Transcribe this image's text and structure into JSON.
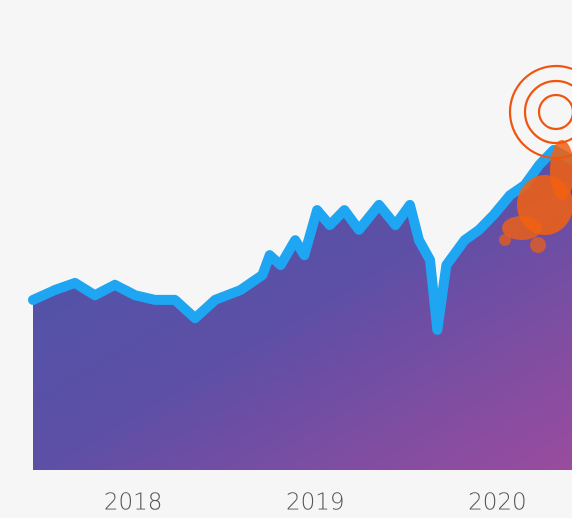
{
  "chart_data": {
    "type": "area-line",
    "x": [
      2017.45,
      2017.57,
      2017.68,
      2017.79,
      2017.9,
      2018.01,
      2018.12,
      2018.23,
      2018.34,
      2018.45,
      2018.59,
      2018.71,
      2018.75,
      2018.81,
      2018.89,
      2018.94,
      2019.01,
      2019.08,
      2019.16,
      2019.24,
      2019.35,
      2019.44,
      2019.52,
      2019.57,
      2019.63,
      2019.67,
      2019.72,
      2019.82,
      2019.9,
      2019.98,
      2020.07,
      2020.15,
      2020.23,
      2020.31,
      2020.41
    ],
    "series": [
      {
        "color": "#1ea6f2",
        "values": [
          36.2,
          38.3,
          39.8,
          37.2,
          39.4,
          37.2,
          36.2,
          36.2,
          32.3,
          36.2,
          38.3,
          41.5,
          45.7,
          43.6,
          48.9,
          45.7,
          55.3,
          52.1,
          55.3,
          51.1,
          56.4,
          52.1,
          56.4,
          48.9,
          44.7,
          29.8,
          43.6,
          48.9,
          51.1,
          54.3,
          58.5,
          60.6,
          64.9,
          68.1,
          66.0
        ]
      }
    ],
    "xlim": [
      2017.45,
      2020.41
    ],
    "xticks": [
      2018,
      2019,
      2020
    ],
    "ylim": [
      0,
      100
    ]
  }
}
